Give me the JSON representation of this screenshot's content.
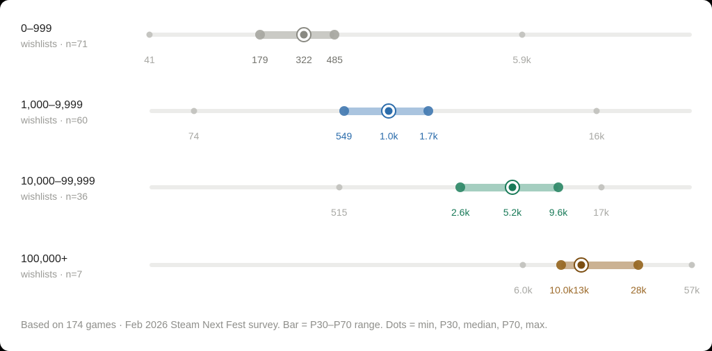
{
  "chart_data": {
    "type": "dot-range",
    "orientation": "horizontal",
    "scale": {
      "type": "log",
      "min": 41,
      "max": 57000
    },
    "track_color": "#ececea",
    "minmax_dot_color": "#c5c5c1",
    "minmax_label_color": "#a8a8a4",
    "footnote": "Based on 174 games · Feb 2026 Steam Next Fest survey. Bar = P30–P70 range. Dots = min, P30, median, P70, max.",
    "rows": [
      {
        "label": "0–999",
        "sublabel": "wishlists · n=71",
        "n": 71,
        "accent": "#8a8a83",
        "bar_color": "#cacac5",
        "quartile_dot_color": "#a7a7a1",
        "value_label_color": "#72726c",
        "points": {
          "min": 41,
          "p30": 179,
          "median": 322,
          "p70": 485,
          "max": 5900
        },
        "point_labels": {
          "min": "41",
          "p30": "179",
          "median": "322",
          "p70": "485",
          "max": "5.9k"
        }
      },
      {
        "label": "1,000–9,999",
        "sublabel": "wishlists · n=60",
        "n": 60,
        "accent": "#2b6cab",
        "bar_color": "#aac4df",
        "quartile_dot_color": "#4379b1",
        "value_label_color": "#2b6cab",
        "points": {
          "min": 74,
          "p30": 549,
          "median": 1000,
          "p70": 1700,
          "max": 16000
        },
        "point_labels": {
          "min": "74",
          "p30": "549",
          "median": "1.0k",
          "p70": "1.7k",
          "max": "16k"
        }
      },
      {
        "label": "10,000–99,999",
        "sublabel": "wishlists · n=36",
        "n": 36,
        "accent": "#197a58",
        "bar_color": "#a5cec0",
        "quartile_dot_color": "#2e8867",
        "value_label_color": "#197a58",
        "points": {
          "min": 515,
          "p30": 2600,
          "median": 5200,
          "p70": 9600,
          "max": 17000
        },
        "point_labels": {
          "min": "515",
          "p30": "2.6k",
          "median": "5.2k",
          "p70": "9.6k",
          "max": "17k"
        }
      },
      {
        "label": "100,000+",
        "sublabel": "wishlists · n=7",
        "n": 7,
        "accent": "#7c4e12",
        "bar_color": "#cbb293",
        "quartile_dot_color": "#96661f",
        "value_label_color": "#9c6a2a",
        "points": {
          "min": 6000,
          "p30": 10000,
          "median": 13000,
          "p70": 28000,
          "max": 57000
        },
        "point_labels": {
          "min": "6.0k",
          "p30": "10.0k",
          "median": "13k",
          "p70": "28k",
          "max": "57k"
        }
      }
    ]
  }
}
